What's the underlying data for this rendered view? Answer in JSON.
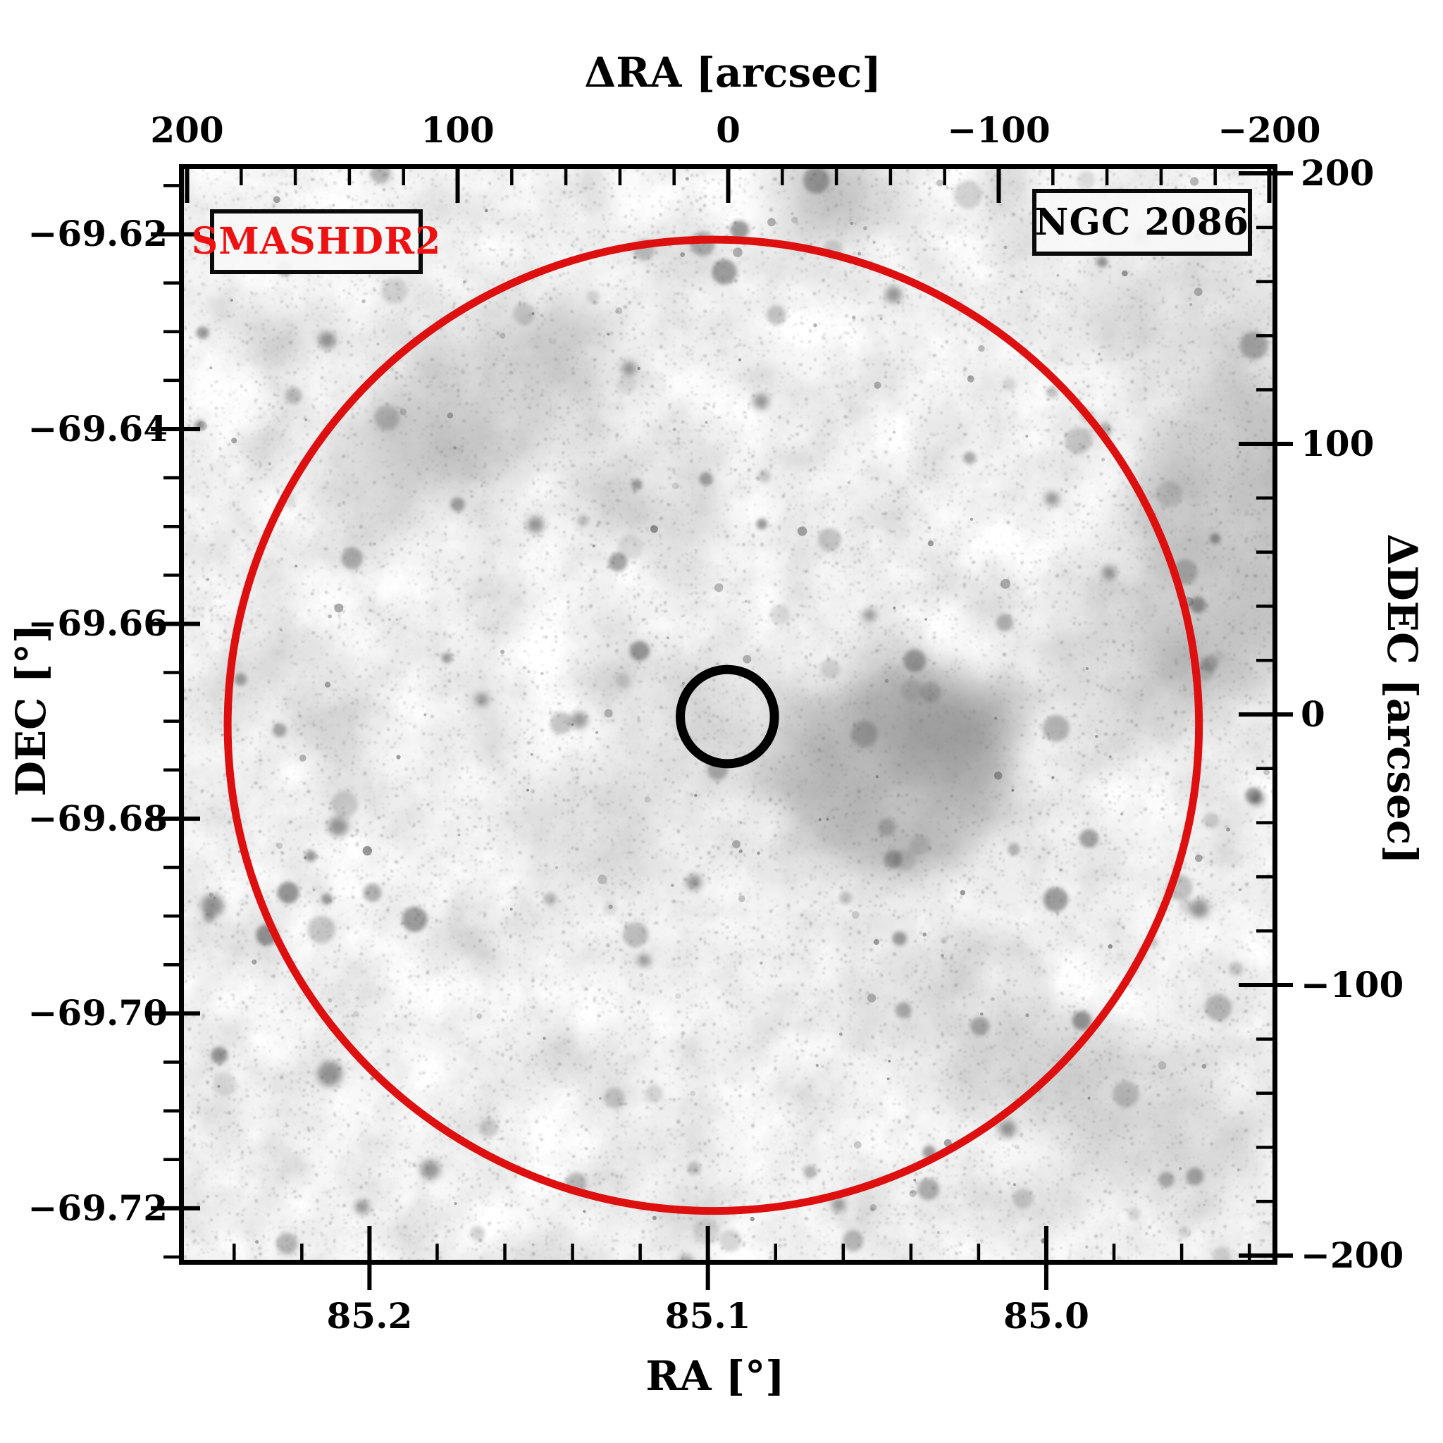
{
  "figure": {
    "survey_badge": "SMASHDR2",
    "target_label": "NGC 2086"
  },
  "axes": {
    "top": {
      "title": "ΔRA [arcsec]",
      "tick_labels": [
        "200",
        "100",
        "0",
        "−100",
        "−200"
      ],
      "tick_values": [
        200,
        100,
        0,
        -100,
        -200
      ]
    },
    "bottom": {
      "title": "RA [°]",
      "tick_labels": [
        "85.2",
        "85.1",
        "85.0"
      ],
      "tick_values": [
        85.2,
        85.1,
        85.0
      ]
    },
    "left": {
      "title": "DEC [°]",
      "tick_labels": [
        "−69.62",
        "−69.64",
        "−69.66",
        "−69.68",
        "−69.70",
        "−69.72"
      ],
      "tick_values": [
        -69.62,
        -69.64,
        -69.66,
        -69.68,
        -69.7,
        -69.72
      ]
    },
    "right": {
      "title": "ΔDEC [arcsec]",
      "tick_labels": [
        "200",
        "100",
        "0",
        "−100",
        "−200"
      ],
      "tick_values": [
        200,
        100,
        0,
        -100,
        -200
      ]
    }
  },
  "chart_data": {
    "type": "heatmap",
    "title": "NGC 2086",
    "description": "Inverted grayscale SMASH DR2 star-field cutout centered on the LMC star cluster NGC 2086; darker pixels are stars and nebulosity.",
    "x_axis": {
      "label": "ΔRA [arcsec]",
      "range": [
        203,
        -203
      ],
      "ticks": [
        200,
        100,
        0,
        -100,
        -200
      ],
      "minor_step": 20
    },
    "y_axis": {
      "label": "ΔDEC [arcsec]",
      "range": [
        -203,
        203
      ],
      "ticks": [
        200,
        100,
        0,
        -100,
        -200
      ],
      "minor_step": 20
    },
    "secondary_x_axis": {
      "label": "RA [°]",
      "ticks": [
        85.2,
        85.1,
        85.0
      ],
      "center_deg": 85.094,
      "minor_step_deg": 0.02
    },
    "secondary_y_axis": {
      "label": "DEC [°]",
      "ticks": [
        -69.62,
        -69.64,
        -69.66,
        -69.68,
        -69.7,
        -69.72
      ],
      "center_deg": -69.6693,
      "minor_step_deg": 0.005
    },
    "overlays": [
      {
        "name": "field-radius-circle",
        "shape": "circle",
        "stroke": "#dd0f0f",
        "stroke_px": 11,
        "center_arcsec": [
          5.5,
          -4
        ],
        "radius_arcsec": 179.5
      },
      {
        "name": "cluster-center-circle",
        "shape": "circle",
        "stroke": "#000000",
        "stroke_px": 13,
        "center_arcsec": [
          0.3,
          -0.8
        ],
        "radius_arcsec": 17.4
      }
    ],
    "grid": false,
    "legend": false
  },
  "colors": {
    "accent_red": "#dd0f0f",
    "badge_text_red": "#ee1111",
    "axis_black": "#000000",
    "field_bg": "#ebebeb"
  }
}
